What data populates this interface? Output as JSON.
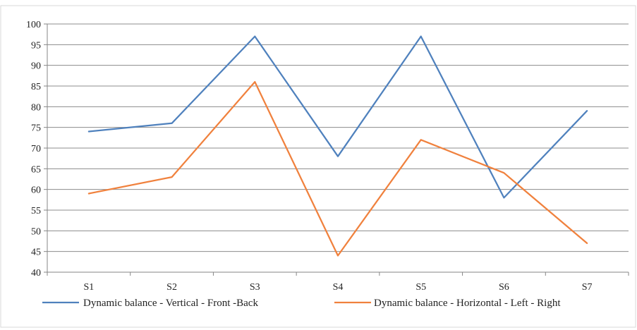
{
  "chart_data": {
    "type": "line",
    "categories": [
      "S1",
      "S2",
      "S3",
      "S4",
      "S5",
      "S6",
      "S7"
    ],
    "series": [
      {
        "name": "Dynamic balance - Vertical - Front -Back",
        "values": [
          74,
          76,
          97,
          68,
          97,
          58,
          79
        ],
        "color": "#4f81bd"
      },
      {
        "name": "Dynamic balance - Horizontal - Left - Right",
        "values": [
          59,
          63,
          86,
          44,
          72,
          64,
          47
        ],
        "color": "#f0813d"
      }
    ],
    "ylim": [
      40,
      100
    ],
    "yticks": [
      "40",
      "45",
      "50",
      "55",
      "60",
      "65",
      "70",
      "75",
      "80",
      "85",
      "90",
      "95",
      "100"
    ],
    "grid": true,
    "legend": "bottom",
    "title": "",
    "xlabel": "",
    "ylabel": ""
  }
}
